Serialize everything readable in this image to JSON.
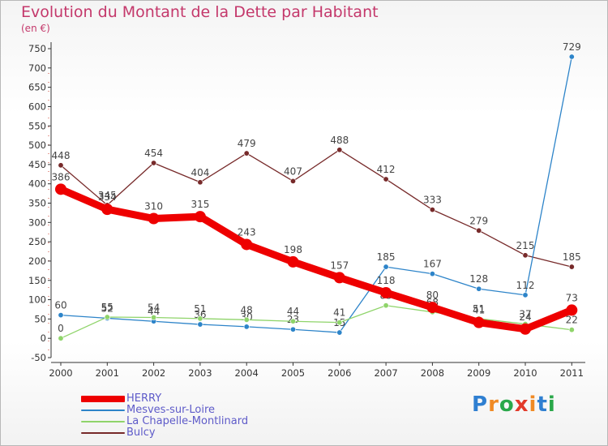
{
  "chart_data": {
    "type": "line",
    "title": "Evolution du Montant de la Dette par Habitant",
    "subtitle": "(en €)",
    "categories": [
      "2000",
      "2001",
      "2002",
      "2003",
      "2004",
      "2005",
      "2006",
      "2007",
      "2008",
      "2009",
      "2010",
      "2011"
    ],
    "ylim": [
      -50,
      750
    ],
    "yticks": [
      -50,
      0,
      50,
      100,
      150,
      200,
      250,
      300,
      350,
      400,
      450,
      500,
      550,
      600,
      650,
      700,
      750
    ],
    "grid": false,
    "legend_position": "bottom-left",
    "series": [
      {
        "name": "Bulcy",
        "color": "#772a2a",
        "values": [
          448,
          345,
          454,
          404,
          479,
          407,
          488,
          412,
          333,
          279,
          215,
          185
        ]
      },
      {
        "name": "Mesves-sur-Loire",
        "color": "#2d84c9",
        "values": [
          60,
          52,
          44,
          36,
          30,
          23,
          15,
          185,
          167,
          128,
          112,
          729
        ]
      },
      {
        "name": "La Chapelle-Montlinard",
        "color": "#8fd46a",
        "values": [
          0,
          55,
          54,
          51,
          48,
          44,
          41,
          85,
          68,
          51,
          37,
          22
        ]
      },
      {
        "name": "HERRY",
        "color": "#ee0000",
        "values": [
          386,
          334,
          310,
          315,
          243,
          198,
          157,
          118,
          80,
          41,
          24,
          73
        ]
      }
    ],
    "legend_order": [
      "HERRY",
      "Mesves-sur-Loire",
      "La Chapelle-Montlinard",
      "Bulcy"
    ]
  },
  "logo": {
    "text": "Proxiti",
    "letters": [
      "P",
      "r",
      "o",
      "x",
      "i",
      "t",
      "i"
    ],
    "colors": [
      "#2f7fd1",
      "#f08a24",
      "#2aa84a",
      "#e23a2a",
      "#f08a24",
      "#2f7fd1",
      "#2aa84a"
    ]
  }
}
